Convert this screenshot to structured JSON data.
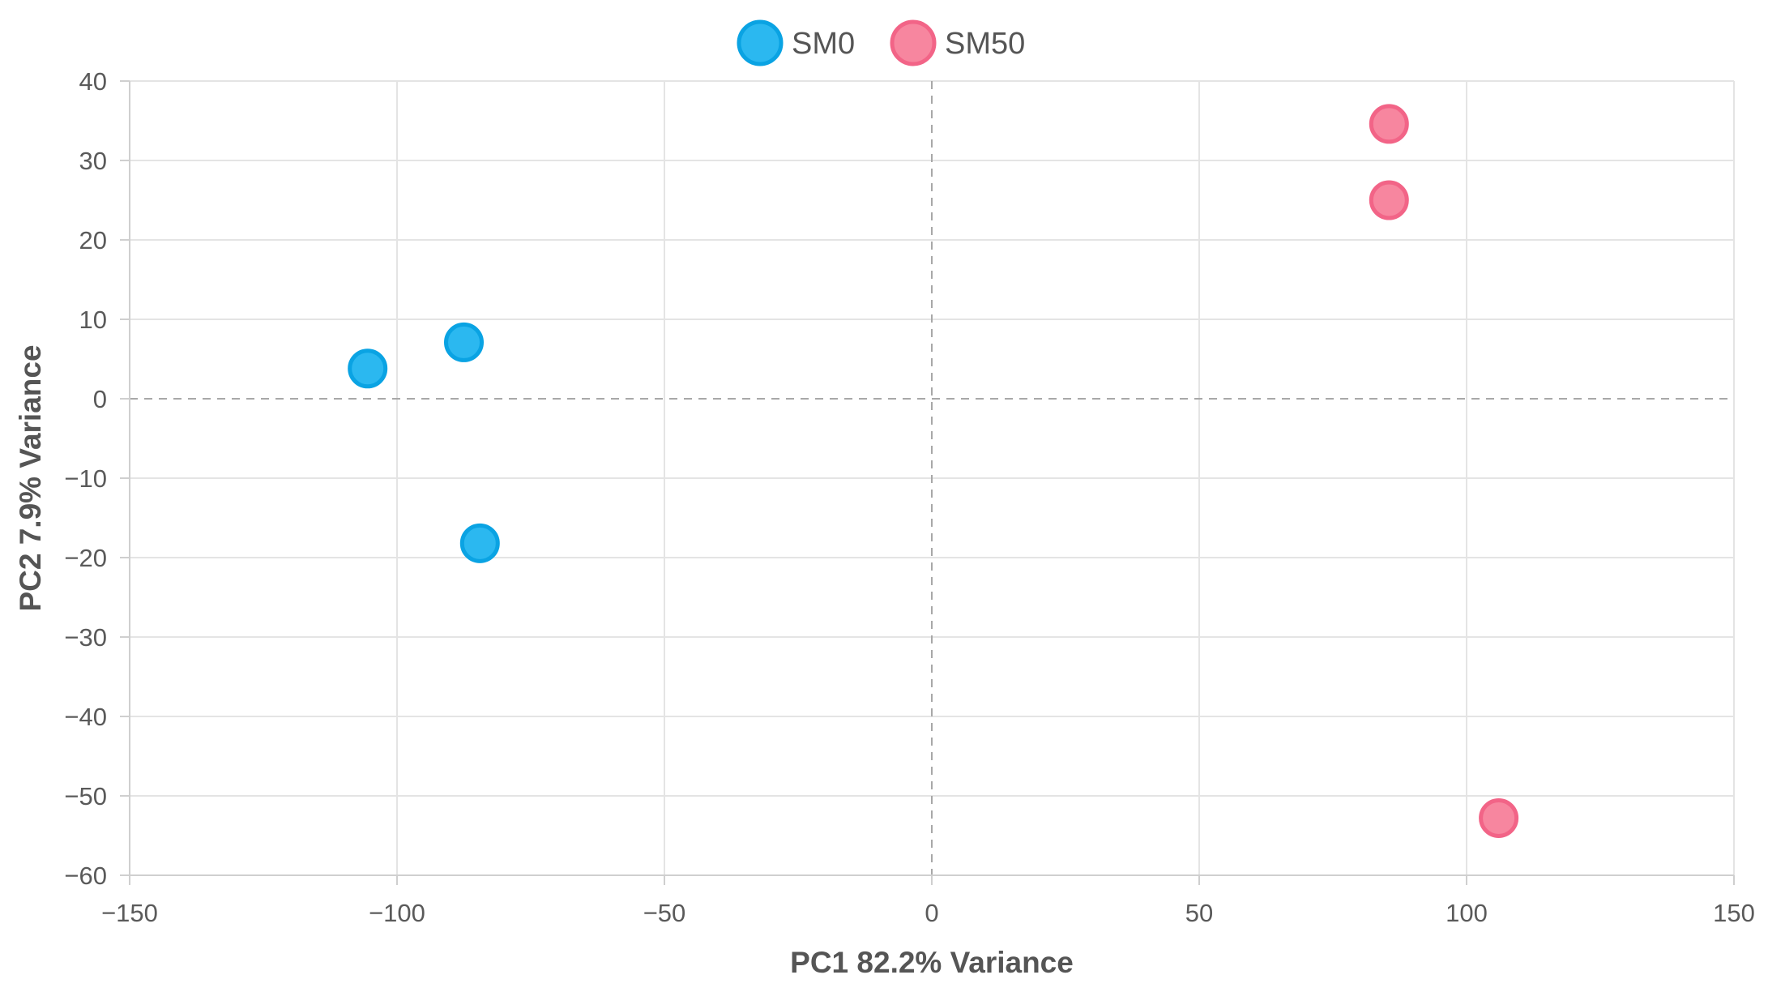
{
  "chart_data": {
    "type": "scatter",
    "title": "",
    "xlabel": "PC1 82.2% Variance",
    "ylabel": "PC2 7.9% Variance",
    "xlim": [
      -150,
      150
    ],
    "ylim": [
      -60,
      40
    ],
    "xticks": [
      -150,
      -100,
      -50,
      0,
      50,
      100,
      150
    ],
    "yticks": [
      -60,
      -50,
      -40,
      -30,
      -20,
      -10,
      0,
      10,
      20,
      30,
      40
    ],
    "xtick_labels": [
      "−150",
      "−100",
      "−50",
      "0",
      "50",
      "100",
      "150"
    ],
    "ytick_labels": [
      "−60",
      "−50",
      "−40",
      "−30",
      "−20",
      "−10",
      "0",
      "10",
      "20",
      "30",
      "40"
    ],
    "grid": true,
    "zero_lines": true,
    "legend_position": "top-center",
    "series": [
      {
        "name": "SM0",
        "color": "#2bb8f0",
        "edge_color": "#0aa3e3",
        "points": [
          {
            "x": -105.5,
            "y": 3.8
          },
          {
            "x": -87.5,
            "y": 7.1
          },
          {
            "x": -84.5,
            "y": -18.2
          }
        ]
      },
      {
        "name": "SM50",
        "color": "#f7869f",
        "edge_color": "#f26487",
        "points": [
          {
            "x": 85.5,
            "y": 34.6
          },
          {
            "x": 85.5,
            "y": 25.0
          },
          {
            "x": 106.0,
            "y": -52.8
          }
        ]
      }
    ]
  }
}
